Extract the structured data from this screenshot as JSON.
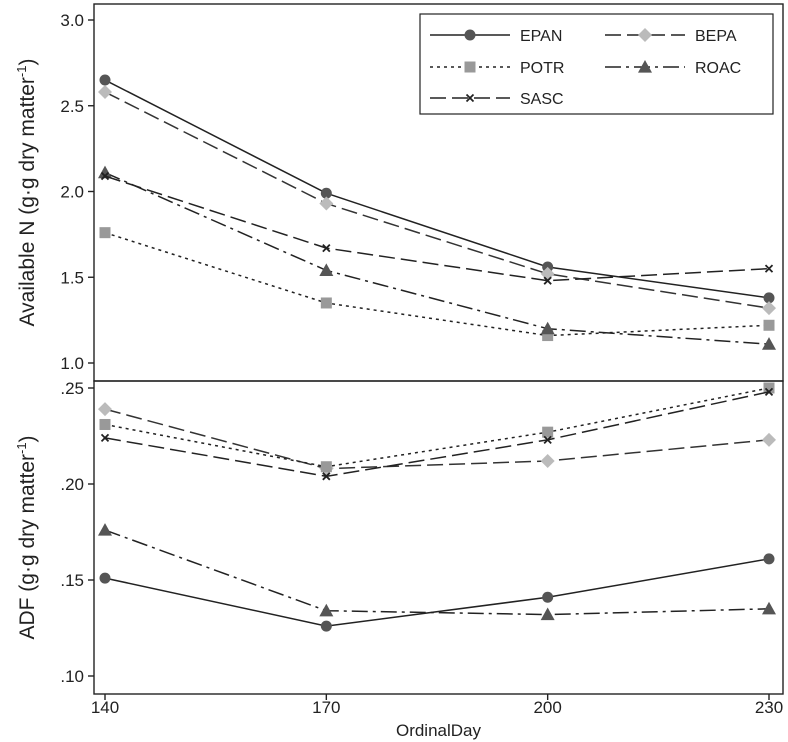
{
  "chart_data": {
    "type": "line",
    "x": [
      140,
      170,
      200,
      230
    ],
    "xlabel": "OrdinalDay",
    "xlim": [
      140,
      230
    ],
    "xticks": [
      "140",
      "170",
      "200",
      "230"
    ],
    "legend": {
      "placement": "top-right",
      "entries": [
        "EPAN",
        "BEPA",
        "POTR",
        "ROAC",
        "SASC"
      ]
    },
    "styles": {
      "EPAN": {
        "color": "#555555",
        "dash": "solid",
        "marker": "circle"
      },
      "BEPA": {
        "color": "#bbbbbb",
        "dash": "long-dash",
        "marker": "diamond"
      },
      "POTR": {
        "color": "#999999",
        "dash": "dotted",
        "marker": "square"
      },
      "ROAC": {
        "color": "#555555",
        "dash": "dash-dot",
        "marker": "triangle"
      },
      "SASC": {
        "color": "#222222",
        "dash": "long-dash",
        "marker": "x"
      }
    },
    "panels": [
      {
        "ylabel": "Available N (g·g dry matter",
        "ylabel_sup": "-1",
        "ylabel_close": ")",
        "ylim": [
          1.0,
          3.0
        ],
        "yticks": [
          {
            "label": "1.0",
            "value": 1.0
          },
          {
            "label": "1.5",
            "value": 1.5
          },
          {
            "label": "2.0",
            "value": 2.0
          },
          {
            "label": "2.5",
            "value": 2.5
          },
          {
            "label": "3.0",
            "value": 3.0
          }
        ],
        "series": [
          {
            "name": "EPAN",
            "values": [
              2.65,
              1.99,
              1.56,
              1.38
            ]
          },
          {
            "name": "BEPA",
            "values": [
              2.58,
              1.93,
              1.52,
              1.32
            ]
          },
          {
            "name": "POTR",
            "values": [
              1.76,
              1.35,
              1.16,
              1.22
            ]
          },
          {
            "name": "ROAC",
            "values": [
              2.11,
              1.54,
              1.2,
              1.11
            ]
          },
          {
            "name": "SASC",
            "values": [
              2.09,
              1.67,
              1.48,
              1.55
            ]
          }
        ]
      },
      {
        "ylabel": "ADF (g·g dry matter",
        "ylabel_sup": "-1",
        "ylabel_close": ")",
        "ylim": [
          0.1,
          0.25
        ],
        "yticks": [
          {
            "label": ".10",
            "value": 0.1
          },
          {
            "label": ".15",
            "value": 0.15
          },
          {
            "label": ".20",
            "value": 0.2
          },
          {
            "label": ".25",
            "value": 0.25
          }
        ],
        "series": [
          {
            "name": "EPAN",
            "values": [
              0.151,
              0.126,
              0.141,
              0.161
            ]
          },
          {
            "name": "BEPA",
            "values": [
              0.239,
              0.208,
              0.212,
              0.223
            ]
          },
          {
            "name": "POTR",
            "values": [
              0.231,
              0.209,
              0.227,
              0.25
            ]
          },
          {
            "name": "ROAC",
            "values": [
              0.176,
              0.134,
              0.132,
              0.135
            ]
          },
          {
            "name": "SASC",
            "values": [
              0.224,
              0.204,
              0.223,
              0.248
            ]
          }
        ]
      }
    ]
  }
}
